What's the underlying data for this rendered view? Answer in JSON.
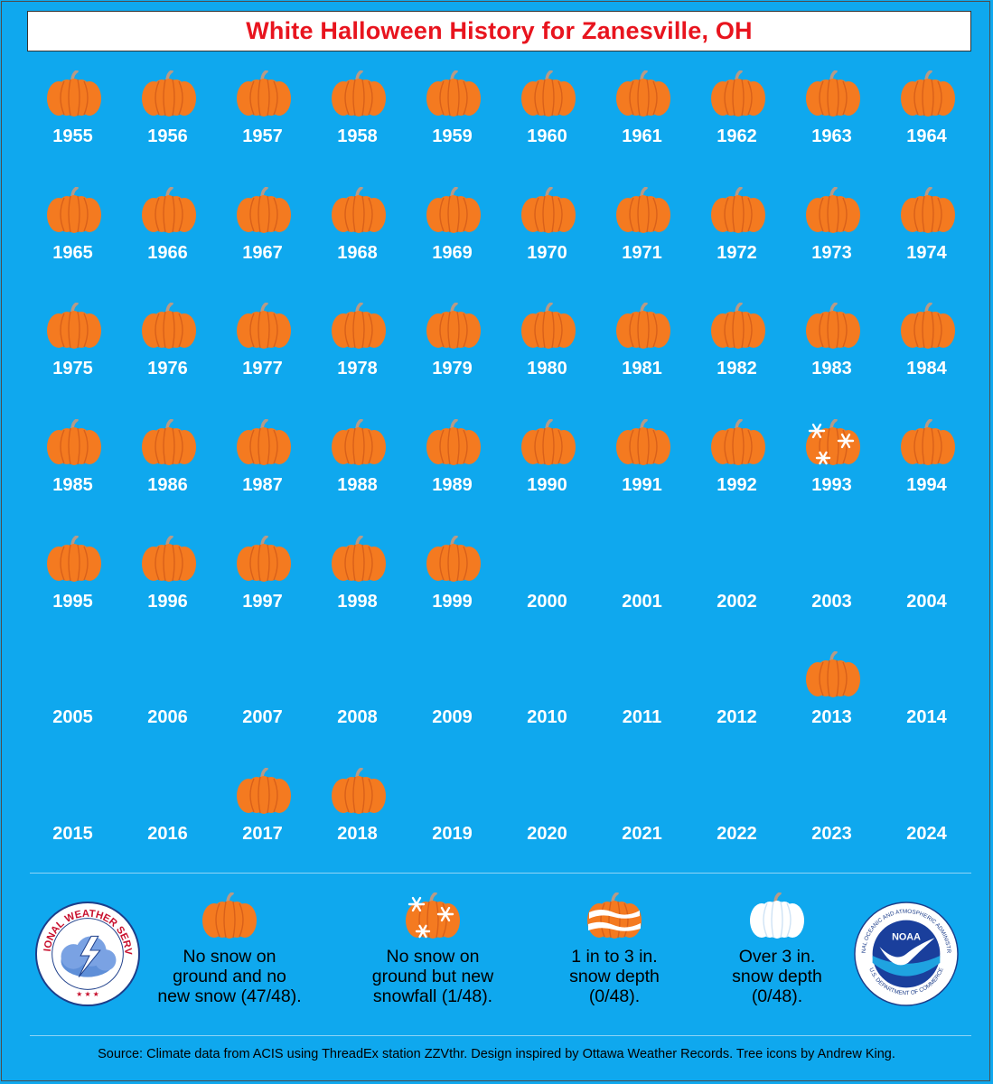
{
  "title": "White Halloween History for Zanesville, OH",
  "colors": {
    "background": "#0FA8EE",
    "title": "#E8141E",
    "pumpkin": "#F47A20",
    "pumpkin_ribs": "#D9601A",
    "stem": "#B79A86",
    "snow": "#FFFFFF"
  },
  "chart_data": {
    "type": "table",
    "title": "White Halloween History for Zanesville, OH",
    "columns": 10,
    "years": [
      {
        "year": "1955",
        "category": "no_snow"
      },
      {
        "year": "1956",
        "category": "no_snow"
      },
      {
        "year": "1957",
        "category": "no_snow"
      },
      {
        "year": "1958",
        "category": "no_snow"
      },
      {
        "year": "1959",
        "category": "no_snow"
      },
      {
        "year": "1960",
        "category": "no_snow"
      },
      {
        "year": "1961",
        "category": "no_snow"
      },
      {
        "year": "1962",
        "category": "no_snow"
      },
      {
        "year": "1963",
        "category": "no_snow"
      },
      {
        "year": "1964",
        "category": "no_snow"
      },
      {
        "year": "1965",
        "category": "no_snow"
      },
      {
        "year": "1966",
        "category": "no_snow"
      },
      {
        "year": "1967",
        "category": "no_snow"
      },
      {
        "year": "1968",
        "category": "no_snow"
      },
      {
        "year": "1969",
        "category": "no_snow"
      },
      {
        "year": "1970",
        "category": "no_snow"
      },
      {
        "year": "1971",
        "category": "no_snow"
      },
      {
        "year": "1972",
        "category": "no_snow"
      },
      {
        "year": "1973",
        "category": "no_snow"
      },
      {
        "year": "1974",
        "category": "no_snow"
      },
      {
        "year": "1975",
        "category": "no_snow"
      },
      {
        "year": "1976",
        "category": "no_snow"
      },
      {
        "year": "1977",
        "category": "no_snow"
      },
      {
        "year": "1978",
        "category": "no_snow"
      },
      {
        "year": "1979",
        "category": "no_snow"
      },
      {
        "year": "1980",
        "category": "no_snow"
      },
      {
        "year": "1981",
        "category": "no_snow"
      },
      {
        "year": "1982",
        "category": "no_snow"
      },
      {
        "year": "1983",
        "category": "no_snow"
      },
      {
        "year": "1984",
        "category": "no_snow"
      },
      {
        "year": "1985",
        "category": "no_snow"
      },
      {
        "year": "1986",
        "category": "no_snow"
      },
      {
        "year": "1987",
        "category": "no_snow"
      },
      {
        "year": "1988",
        "category": "no_snow"
      },
      {
        "year": "1989",
        "category": "no_snow"
      },
      {
        "year": "1990",
        "category": "no_snow"
      },
      {
        "year": "1991",
        "category": "no_snow"
      },
      {
        "year": "1992",
        "category": "no_snow"
      },
      {
        "year": "1993",
        "category": "new_snow"
      },
      {
        "year": "1994",
        "category": "no_snow"
      },
      {
        "year": "1995",
        "category": "no_snow"
      },
      {
        "year": "1996",
        "category": "no_snow"
      },
      {
        "year": "1997",
        "category": "no_snow"
      },
      {
        "year": "1998",
        "category": "no_snow"
      },
      {
        "year": "1999",
        "category": "no_snow"
      },
      {
        "year": "2000",
        "category": "missing"
      },
      {
        "year": "2001",
        "category": "missing"
      },
      {
        "year": "2002",
        "category": "missing"
      },
      {
        "year": "2003",
        "category": "missing"
      },
      {
        "year": "2004",
        "category": "missing"
      },
      {
        "year": "2005",
        "category": "missing"
      },
      {
        "year": "2006",
        "category": "missing"
      },
      {
        "year": "2007",
        "category": "missing"
      },
      {
        "year": "2008",
        "category": "missing"
      },
      {
        "year": "2009",
        "category": "missing"
      },
      {
        "year": "2010",
        "category": "missing"
      },
      {
        "year": "2011",
        "category": "missing"
      },
      {
        "year": "2012",
        "category": "missing"
      },
      {
        "year": "2013",
        "category": "no_snow"
      },
      {
        "year": "2014",
        "category": "missing"
      },
      {
        "year": "2015",
        "category": "missing"
      },
      {
        "year": "2016",
        "category": "missing"
      },
      {
        "year": "2017",
        "category": "no_snow"
      },
      {
        "year": "2018",
        "category": "no_snow"
      },
      {
        "year": "2019",
        "category": "missing"
      },
      {
        "year": "2020",
        "category": "missing"
      },
      {
        "year": "2021",
        "category": "missing"
      },
      {
        "year": "2022",
        "category": "missing"
      },
      {
        "year": "2023",
        "category": "missing"
      },
      {
        "year": "2024",
        "category": "missing"
      }
    ],
    "legend": [
      {
        "category": "no_snow",
        "label": "No snow on ground and no new snow (47/48)."
      },
      {
        "category": "new_snow",
        "label": "No snow on ground but new snowfall (1/48)."
      },
      {
        "category": "depth_1_3",
        "label": "1 in to 3 in. snow depth (0/48)."
      },
      {
        "category": "depth_over_3",
        "label": "Over 3 in. snow depth (0/48)."
      }
    ]
  },
  "legend_lines": [
    [
      "No snow on",
      "ground and no",
      "new snow (47/48)."
    ],
    [
      "No snow on",
      "ground but new",
      "snowfall (1/48)."
    ],
    [
      "1 in to 3 in.",
      "snow depth",
      "(0/48)."
    ],
    [
      "Over 3 in.",
      "snow depth",
      "(0/48)."
    ]
  ],
  "logos": {
    "nws_text": "NATIONAL WEATHER SERVICE",
    "noaa_badge": "NOAA",
    "noaa_ring_text": "NATIONAL OCEANIC AND ATMOSPHERIC ADMINISTRATION",
    "noaa_bottom_text": "U.S. DEPARTMENT OF COMMERCE"
  },
  "source": "Source: Climate data from ACIS using ThreadEx station ZZVthr. Design inspired by Ottawa Weather Records. Tree icons by Andrew King."
}
